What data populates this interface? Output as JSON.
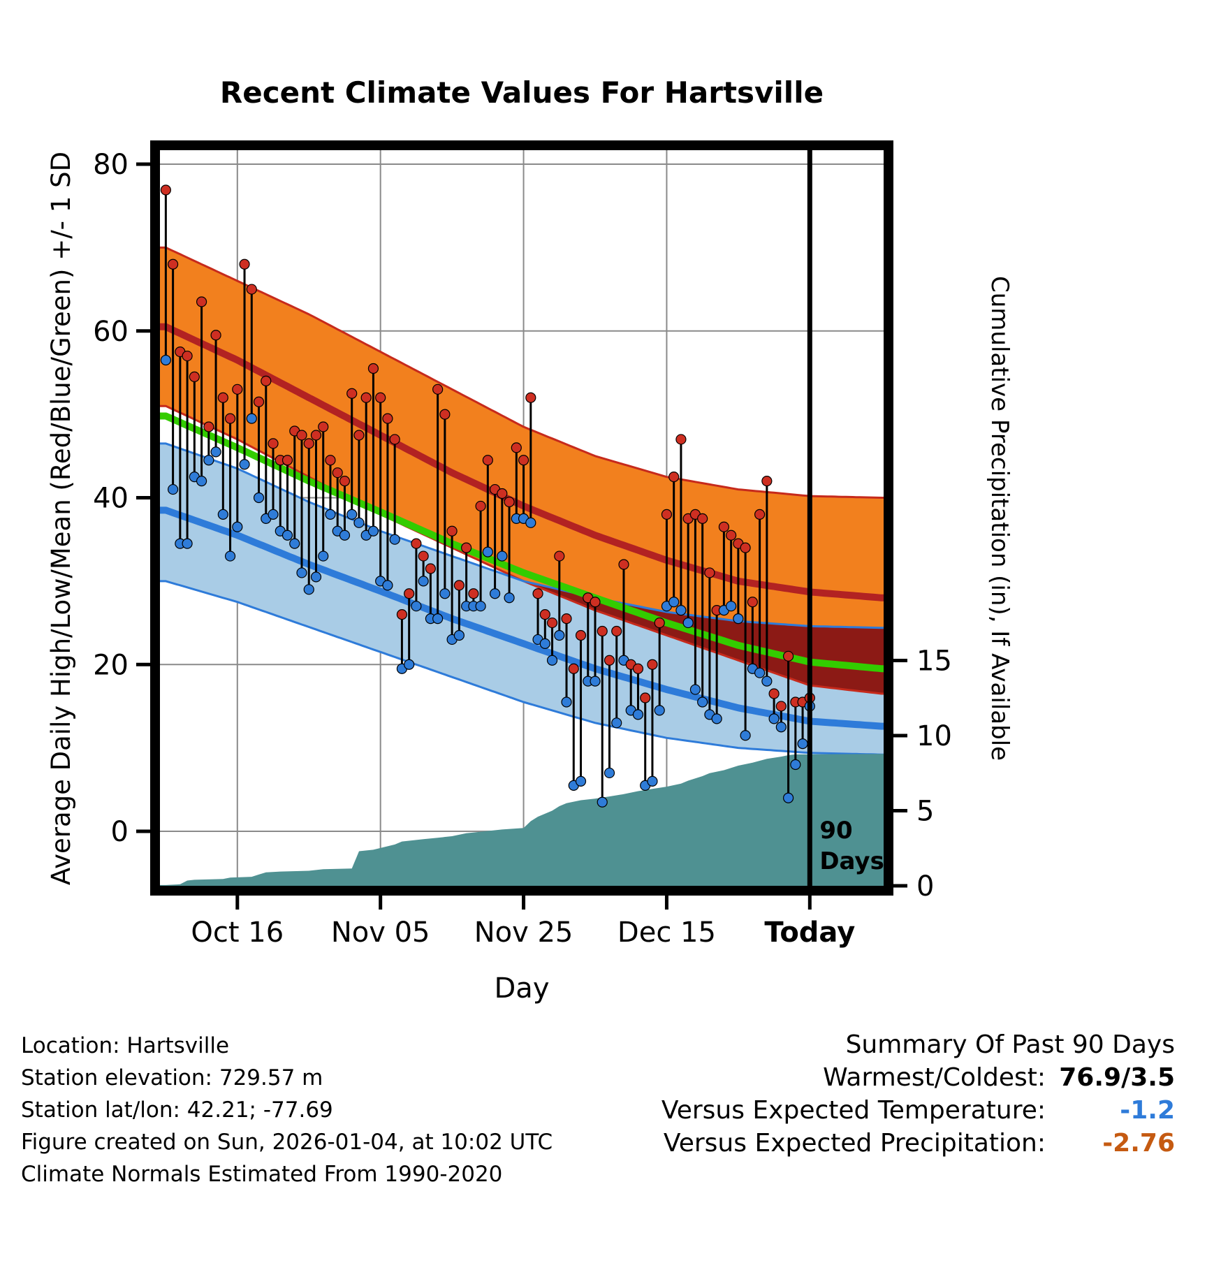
{
  "title": "Recent Climate Values For Hartsville",
  "axes": {
    "x_label": "Day",
    "left_label": "Average Daily High/Low/Mean (Red/Blue/Green) +/- 1 SD",
    "right_label": "Cumulative Precipitation (in), If Available",
    "left_ticks": [
      80,
      60,
      40,
      20,
      0
    ],
    "right_ticks": [
      15,
      10,
      5,
      0
    ],
    "x_ticks": [
      {
        "day": 10,
        "label": "Oct 16",
        "bold": false
      },
      {
        "day": 30,
        "label": "Nov 05",
        "bold": false
      },
      {
        "day": 50,
        "label": "Nov 25",
        "bold": false
      },
      {
        "day": 70,
        "label": "Dec 15",
        "bold": false
      },
      {
        "day": 90,
        "label": "Today",
        "bold": true
      }
    ]
  },
  "annotations": {
    "days_marker_line1": "90",
    "days_marker_line2": "Days"
  },
  "footer_left": [
    "Location: Hartsville",
    "Station elevation: 729.57 m",
    "Station lat/lon: 42.21; -77.69",
    "Figure created on Sun, 2026-01-04, at 10:02 UTC",
    "Climate Normals Estimated From 1990-2020"
  ],
  "summary": {
    "title": "Summary Of Past 90 Days",
    "rows": [
      {
        "label": "Warmest/Coldest:",
        "value": "76.9/3.5",
        "color": "#000000",
        "bold": true
      },
      {
        "label": "Versus Expected Temperature:",
        "value": "-1.2",
        "color": "#2E7BD9",
        "bold": true
      },
      {
        "label": "Versus Expected Precipitation:",
        "value": "-2.76",
        "color": "#C55A11",
        "bold": true
      }
    ]
  },
  "colors": {
    "orange_band": "#F2801E",
    "band_edge_red": "#C62A1C",
    "high_mean_red": "#B22222",
    "overlap_maroon": "#8C1A15",
    "low_band_blue": "#A9CCE6",
    "low_mean_blue": "#2E7BD9",
    "mean_green": "#33CC00",
    "precip_teal": "#4F9192",
    "daily_high_dot": "#CE2F22",
    "daily_low_dot": "#2F7CD8",
    "bar_line": "#000000",
    "grid": "#8A8A8A",
    "frame": "#000000"
  },
  "chart_data": {
    "type": "line",
    "title": "Recent Climate Values For Hartsville",
    "x_unit": "day index, 0 = Oct 06 through 90 = Today (Jan 04); plot extends to day 100",
    "today_day": 90,
    "temp_ylim": [
      -6.5,
      81.7
    ],
    "precip_ylim": [
      0,
      49
    ],
    "grid": true,
    "normals": {
      "days": [
        0,
        10,
        20,
        30,
        40,
        50,
        60,
        70,
        80,
        90,
        100
      ],
      "high_plus_sd": [
        70,
        66,
        62,
        57.5,
        53,
        48.5,
        45,
        42.5,
        41,
        40.2,
        40
      ],
      "high_mean": [
        60.5,
        56.5,
        52,
        47.5,
        43,
        39,
        35.5,
        32.5,
        30,
        28.7,
        28
      ],
      "high_minus_sd": [
        51,
        47,
        42.5,
        38,
        34,
        30,
        26.5,
        23.5,
        20.5,
        17.5,
        16.5
      ],
      "mean": [
        49.8,
        46,
        42,
        38.3,
        34.5,
        31,
        28,
        25,
        22.3,
        20.3,
        19.5
      ],
      "low_plus_sd": [
        46.5,
        43.5,
        39.5,
        36,
        33,
        30,
        28,
        26.3,
        25.2,
        24.6,
        24.4
      ],
      "low_mean": [
        38.5,
        35.5,
        32,
        28.8,
        25.5,
        22.5,
        19.5,
        17,
        14.8,
        13.2,
        12.6
      ],
      "low_minus_sd": [
        30,
        27.5,
        24.5,
        21.5,
        18.5,
        15.5,
        13,
        11.2,
        10,
        9.4,
        9.2
      ]
    },
    "daily_high_low": {
      "format": [
        "date",
        "high_f",
        "low_f"
      ],
      "values": [
        [
          "Oct 06",
          76.9,
          56.5
        ],
        [
          "Oct 07",
          68,
          41
        ],
        [
          "Oct 08",
          57.5,
          34.5
        ],
        [
          "Oct 09",
          57,
          34.5
        ],
        [
          "Oct 10",
          54.5,
          42.5
        ],
        [
          "Oct 11",
          63.5,
          42
        ],
        [
          "Oct 12",
          48.5,
          44.5
        ],
        [
          "Oct 13",
          59.5,
          45.5
        ],
        [
          "Oct 14",
          52,
          38
        ],
        [
          "Oct 15",
          49.5,
          33
        ],
        [
          "Oct 16",
          53,
          36.5
        ],
        [
          "Oct 17",
          68,
          44
        ],
        [
          "Oct 18",
          65,
          49.5
        ],
        [
          "Oct 19",
          51.5,
          40
        ],
        [
          "Oct 20",
          54,
          37.5
        ],
        [
          "Oct 21",
          46.5,
          38
        ],
        [
          "Oct 22",
          44.5,
          36
        ],
        [
          "Oct 23",
          44.5,
          35.5
        ],
        [
          "Oct 24",
          48,
          34.5
        ],
        [
          "Oct 25",
          47.5,
          31
        ],
        [
          "Oct 26",
          46.5,
          29
        ],
        [
          "Oct 27",
          47.5,
          30.5
        ],
        [
          "Oct 28",
          48.5,
          33
        ],
        [
          "Oct 29",
          44.5,
          38
        ],
        [
          "Oct 30",
          43,
          36
        ],
        [
          "Oct 31",
          42,
          35.5
        ],
        [
          "Nov 01",
          52.5,
          38
        ],
        [
          "Nov 02",
          47.5,
          37
        ],
        [
          "Nov 03",
          52,
          35.5
        ],
        [
          "Nov 04",
          55.5,
          36
        ],
        [
          "Nov 05",
          52,
          30
        ],
        [
          "Nov 06",
          49.5,
          29.5
        ],
        [
          "Nov 07",
          47,
          35
        ],
        [
          "Nov 08",
          26,
          19.5
        ],
        [
          "Nov 09",
          28.5,
          20
        ],
        [
          "Nov 10",
          34.5,
          27
        ],
        [
          "Nov 11",
          33,
          30
        ],
        [
          "Nov 12",
          31.5,
          25.5
        ],
        [
          "Nov 13",
          53,
          25.5
        ],
        [
          "Nov 14",
          50,
          28.5
        ],
        [
          "Nov 15",
          36,
          23
        ],
        [
          "Nov 16",
          29.5,
          23.5
        ],
        [
          "Nov 17",
          34,
          27
        ],
        [
          "Nov 18",
          28.5,
          27
        ],
        [
          "Nov 19",
          39,
          27
        ],
        [
          "Nov 20",
          44.5,
          33.5
        ],
        [
          "Nov 21",
          41,
          28.5
        ],
        [
          "Nov 22",
          40.5,
          33
        ],
        [
          "Nov 23",
          39.5,
          28
        ],
        [
          "Nov 24",
          46,
          37.5
        ],
        [
          "Nov 25",
          44.5,
          37.5
        ],
        [
          "Nov 26",
          52,
          37
        ],
        [
          "Nov 27",
          28.5,
          23
        ],
        [
          "Nov 28",
          26,
          22.5
        ],
        [
          "Nov 29",
          25,
          20.5
        ],
        [
          "Nov 30",
          33,
          23.5
        ],
        [
          "Dec 01",
          25.5,
          15.5
        ],
        [
          "Dec 02",
          19.5,
          5.5
        ],
        [
          "Dec 03",
          23.5,
          6
        ],
        [
          "Dec 04",
          28,
          18
        ],
        [
          "Dec 05",
          27.5,
          18
        ],
        [
          "Dec 06",
          24,
          3.5
        ],
        [
          "Dec 07",
          20.5,
          7
        ],
        [
          "Dec 08",
          24,
          13
        ],
        [
          "Dec 09",
          32,
          20.5
        ],
        [
          "Dec 10",
          20,
          14.5
        ],
        [
          "Dec 11",
          19.5,
          14
        ],
        [
          "Dec 12",
          16,
          5.5
        ],
        [
          "Dec 13",
          20,
          6
        ],
        [
          "Dec 14",
          25,
          14.5
        ],
        [
          "Dec 15",
          38,
          27
        ],
        [
          "Dec 16",
          42.5,
          27.5
        ],
        [
          "Dec 17",
          47,
          26.5
        ],
        [
          "Dec 18",
          37.5,
          25
        ],
        [
          "Dec 19",
          38,
          17
        ],
        [
          "Dec 20",
          37.5,
          15.5
        ],
        [
          "Dec 21",
          31,
          14
        ],
        [
          "Dec 22",
          26.5,
          13.5
        ],
        [
          "Dec 23",
          36.5,
          26.5
        ],
        [
          "Dec 24",
          35.5,
          27
        ],
        [
          "Dec 25",
          34.5,
          25.5
        ],
        [
          "Dec 26",
          34,
          11.5
        ],
        [
          "Dec 27",
          27.5,
          19.5
        ],
        [
          "Dec 28",
          38,
          19
        ],
        [
          "Dec 29",
          42,
          18
        ],
        [
          "Dec 30",
          16.5,
          13.5
        ],
        [
          "Dec 31",
          15,
          12.5
        ],
        [
          "Jan 01",
          21,
          4
        ],
        [
          "Jan 02",
          15.5,
          8
        ],
        [
          "Jan 03",
          15.5,
          10.5
        ],
        [
          "Jan 04",
          16,
          15
        ]
      ]
    },
    "precip_cumulative": {
      "format": [
        "day",
        "inches"
      ],
      "values": [
        [
          0,
          0.05
        ],
        [
          2,
          0.1
        ],
        [
          3,
          0.35
        ],
        [
          4,
          0.4
        ],
        [
          8,
          0.45
        ],
        [
          9,
          0.55
        ],
        [
          12,
          0.6
        ],
        [
          13,
          0.75
        ],
        [
          14,
          0.9
        ],
        [
          16,
          0.95
        ],
        [
          20,
          1.0
        ],
        [
          22,
          1.1
        ],
        [
          26,
          1.15
        ],
        [
          27,
          2.3
        ],
        [
          29,
          2.4
        ],
        [
          32,
          2.75
        ],
        [
          33,
          2.95
        ],
        [
          36,
          3.1
        ],
        [
          38,
          3.2
        ],
        [
          40,
          3.3
        ],
        [
          42,
          3.5
        ],
        [
          44,
          3.6
        ],
        [
          47,
          3.75
        ],
        [
          50,
          3.85
        ],
        [
          51,
          4.3
        ],
        [
          52,
          4.6
        ],
        [
          54,
          5.0
        ],
        [
          55,
          5.3
        ],
        [
          56,
          5.5
        ],
        [
          58,
          5.7
        ],
        [
          60,
          5.8
        ],
        [
          62,
          5.95
        ],
        [
          64,
          6.1
        ],
        [
          66,
          6.3
        ],
        [
          68,
          6.45
        ],
        [
          70,
          6.6
        ],
        [
          72,
          6.8
        ],
        [
          73,
          7.0
        ],
        [
          75,
          7.3
        ],
        [
          76,
          7.5
        ],
        [
          78,
          7.7
        ],
        [
          80,
          8.0
        ],
        [
          82,
          8.2
        ],
        [
          84,
          8.45
        ],
        [
          86,
          8.6
        ],
        [
          87,
          8.7
        ],
        [
          88,
          8.75
        ],
        [
          100,
          8.78
        ]
      ]
    },
    "summary": {
      "warmest": 76.9,
      "coldest": 3.5,
      "vs_expected_temperature": -1.2,
      "vs_expected_precipitation": -2.76
    }
  }
}
